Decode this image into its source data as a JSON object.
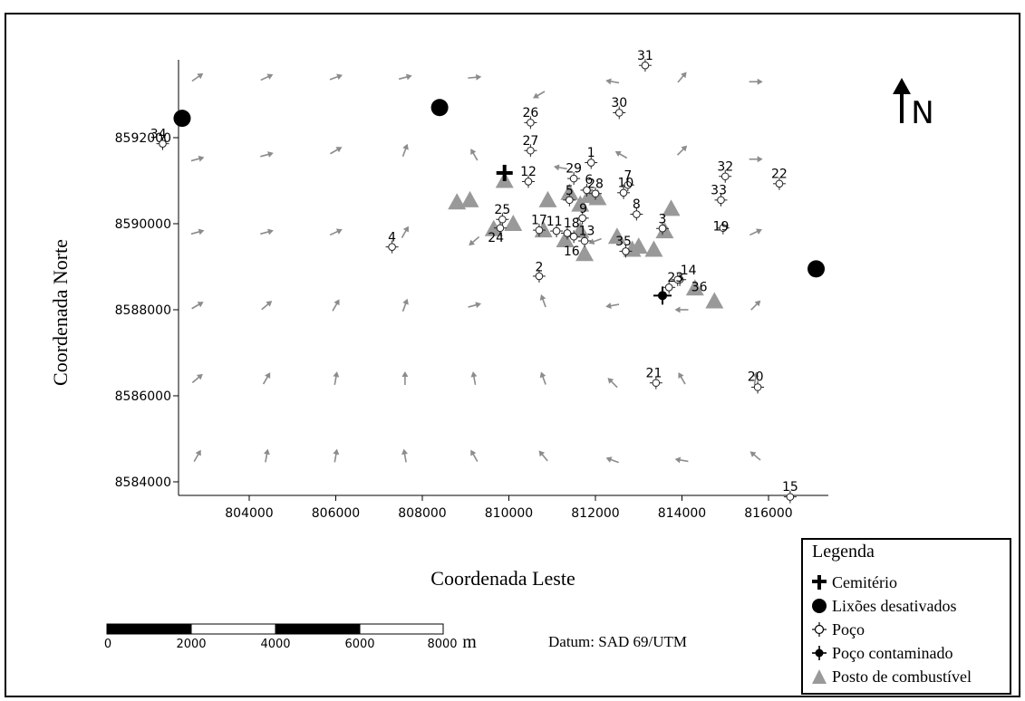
{
  "map": {
    "x_axis_label": "Coordenada Leste",
    "y_axis_label": "Coordenada Norte",
    "x_ticks": [
      "804000",
      "806000",
      "808000",
      "810000",
      "812000",
      "814000",
      "816000"
    ],
    "x_tick_values": [
      804000,
      806000,
      808000,
      810000,
      812000,
      814000,
      816000
    ],
    "y_ticks": [
      "8584000",
      "8586000",
      "8588000",
      "8590000",
      "8592000"
    ],
    "y_tick_values": [
      8584000,
      8586000,
      8588000,
      8590000,
      8592000
    ],
    "xlim": [
      802000,
      817200
    ],
    "ylim": [
      8583600,
      8593800
    ],
    "north_label": "N",
    "datum": "Datum: SAD 69/UTM",
    "scale_bar": {
      "labels": [
        "0",
        "2000",
        "4000",
        "6000",
        "8000"
      ],
      "unit": "m"
    },
    "colors": {
      "triangle": "#999999",
      "arrow": "#8c8c8c",
      "black": "#000000"
    },
    "wells": [
      {
        "id": "1",
        "x": 811900,
        "y": 8591420
      },
      {
        "id": "2",
        "x": 810700,
        "y": 8588780
      },
      {
        "id": "3",
        "x": 813550,
        "y": 8589890
      },
      {
        "id": "4",
        "x": 807300,
        "y": 8589460
      },
      {
        "id": "5",
        "x": 811400,
        "y": 8590550
      },
      {
        "id": "6",
        "x": 811800,
        "y": 8590780
      },
      {
        "id": "7",
        "x": 812750,
        "y": 8590900
      },
      {
        "id": "8",
        "x": 812950,
        "y": 8590220
      },
      {
        "id": "9",
        "x": 811700,
        "y": 8590130
      },
      {
        "id": "10",
        "x": 812650,
        "y": 8590720
      },
      {
        "id": "11",
        "x": 811100,
        "y": 8589830
      },
      {
        "id": "12",
        "x": 810450,
        "y": 8590980
      },
      {
        "id": "13",
        "x": 811750,
        "y": 8589600
      },
      {
        "id": "14",
        "x": 813950,
        "y": 8588700
      },
      {
        "id": "15",
        "x": 816500,
        "y": 8583650
      },
      {
        "id": "16",
        "x": 811500,
        "y": 8589700
      },
      {
        "id": "17",
        "x": 810700,
        "y": 8589850
      },
      {
        "id": "18",
        "x": 811350,
        "y": 8589780
      },
      {
        "id": "19",
        "x": 814950,
        "y": 8589900
      },
      {
        "id": "20",
        "x": 815750,
        "y": 8586200
      },
      {
        "id": "21",
        "x": 813400,
        "y": 8586300
      },
      {
        "id": "22",
        "x": 816250,
        "y": 8590930
      },
      {
        "id": "23",
        "x": 813700,
        "y": 8588520
      },
      {
        "id": "24",
        "x": 809800,
        "y": 8589900
      },
      {
        "id": "25",
        "x": 809850,
        "y": 8590100
      },
      {
        "id": "26",
        "x": 810500,
        "y": 8592350
      },
      {
        "id": "27",
        "x": 810500,
        "y": 8591700
      },
      {
        "id": "28",
        "x": 812000,
        "y": 8590700
      },
      {
        "id": "29",
        "x": 811500,
        "y": 8591050
      },
      {
        "id": "30",
        "x": 812550,
        "y": 8592580
      },
      {
        "id": "31",
        "x": 813150,
        "y": 8593680
      },
      {
        "id": "32",
        "x": 815000,
        "y": 8591100
      },
      {
        "id": "33",
        "x": 814900,
        "y": 8590550
      },
      {
        "id": "34",
        "x": 802000,
        "y": 8591860
      },
      {
        "id": "35",
        "x": 812700,
        "y": 8589360
      },
      {
        "id": "36",
        "x": 813900,
        "y": 8588700
      }
    ],
    "well_labels": [
      {
        "id": "1",
        "x": 811900,
        "y": 8591660
      },
      {
        "id": "2",
        "x": 810700,
        "y": 8589000
      },
      {
        "id": "3",
        "x": 813550,
        "y": 8590120
      },
      {
        "id": "4",
        "x": 807300,
        "y": 8589690
      },
      {
        "id": "5",
        "x": 811400,
        "y": 8590780
      },
      {
        "id": "6",
        "x": 811850,
        "y": 8591030
      },
      {
        "id": "7",
        "x": 812750,
        "y": 8591130
      },
      {
        "id": "8",
        "x": 812950,
        "y": 8590460
      },
      {
        "id": "9",
        "x": 811720,
        "y": 8590360
      },
      {
        "id": "10",
        "x": 812700,
        "y": 8590960
      },
      {
        "id": "11",
        "x": 811050,
        "y": 8590060
      },
      {
        "id": "12",
        "x": 810450,
        "y": 8591220
      },
      {
        "id": "13",
        "x": 811800,
        "y": 8589840
      },
      {
        "id": "14",
        "x": 814150,
        "y": 8588930
      },
      {
        "id": "15",
        "x": 816500,
        "y": 8583900
      },
      {
        "id": "16",
        "x": 811450,
        "y": 8589370
      },
      {
        "id": "17",
        "x": 810700,
        "y": 8590090
      },
      {
        "id": "18",
        "x": 811450,
        "y": 8590020
      },
      {
        "id": "19",
        "x": 814900,
        "y": 8589950
      },
      {
        "id": "20",
        "x": 815700,
        "y": 8586450
      },
      {
        "id": "21",
        "x": 813350,
        "y": 8586540
      },
      {
        "id": "22",
        "x": 816250,
        "y": 8591170
      },
      {
        "id": "23",
        "x": 813850,
        "y": 8588760
      },
      {
        "id": "24",
        "x": 809700,
        "y": 8589680
      },
      {
        "id": "25",
        "x": 809850,
        "y": 8590340
      },
      {
        "id": "26",
        "x": 810500,
        "y": 8592590
      },
      {
        "id": "27",
        "x": 810500,
        "y": 8591940
      },
      {
        "id": "28",
        "x": 812000,
        "y": 8590940
      },
      {
        "id": "29",
        "x": 811500,
        "y": 8591290
      },
      {
        "id": "30",
        "x": 812550,
        "y": 8592820
      },
      {
        "id": "31",
        "x": 813150,
        "y": 8593920
      },
      {
        "id": "32",
        "x": 815000,
        "y": 8591340
      },
      {
        "id": "33",
        "x": 814850,
        "y": 8590790
      },
      {
        "id": "34",
        "x": 801900,
        "y": 8592100
      },
      {
        "id": "35",
        "x": 812650,
        "y": 8589600
      },
      {
        "id": "36",
        "x": 814400,
        "y": 8588540
      }
    ],
    "contaminated_well": {
      "x": 813550,
      "y": 8588330
    },
    "cemetery": {
      "x": 809900,
      "y": 8591180
    },
    "dumps": [
      {
        "x": 802450,
        "y": 8592450
      },
      {
        "x": 808400,
        "y": 8592700
      },
      {
        "x": 817100,
        "y": 8588950
      }
    ],
    "stations": [
      {
        "x": 808800,
        "y": 8590500
      },
      {
        "x": 809100,
        "y": 8590550
      },
      {
        "x": 809650,
        "y": 8589880
      },
      {
        "x": 810100,
        "y": 8590000
      },
      {
        "x": 809900,
        "y": 8591000
      },
      {
        "x": 810800,
        "y": 8589850
      },
      {
        "x": 810900,
        "y": 8590550
      },
      {
        "x": 811400,
        "y": 8590720
      },
      {
        "x": 811300,
        "y": 8589620
      },
      {
        "x": 811650,
        "y": 8589840
      },
      {
        "x": 811750,
        "y": 8589300
      },
      {
        "x": 811850,
        "y": 8590650
      },
      {
        "x": 811650,
        "y": 8590450
      },
      {
        "x": 812050,
        "y": 8590600
      },
      {
        "x": 812500,
        "y": 8589700
      },
      {
        "x": 812850,
        "y": 8589400
      },
      {
        "x": 813000,
        "y": 8589470
      },
      {
        "x": 813350,
        "y": 8589400
      },
      {
        "x": 813600,
        "y": 8589830
      },
      {
        "x": 813750,
        "y": 8590350
      },
      {
        "x": 814300,
        "y": 8588500
      },
      {
        "x": 814750,
        "y": 8588200
      }
    ],
    "flow_arrows": [
      {
        "x": 802800,
        "y": 8593400,
        "a": 35
      },
      {
        "x": 804400,
        "y": 8593400,
        "a": 25
      },
      {
        "x": 806000,
        "y": 8593400,
        "a": 20
      },
      {
        "x": 807600,
        "y": 8593400,
        "a": 15
      },
      {
        "x": 809200,
        "y": 8593400,
        "a": 5
      },
      {
        "x": 810700,
        "y": 8593000,
        "a": 210
      },
      {
        "x": 812400,
        "y": 8593300,
        "a": 170
      },
      {
        "x": 814000,
        "y": 8593400,
        "a": 50
      },
      {
        "x": 815700,
        "y": 8593300,
        "a": 0
      },
      {
        "x": 802800,
        "y": 8591500,
        "a": 15
      },
      {
        "x": 804400,
        "y": 8591600,
        "a": 15
      },
      {
        "x": 806000,
        "y": 8591700,
        "a": 30
      },
      {
        "x": 807600,
        "y": 8591700,
        "a": 70
      },
      {
        "x": 809200,
        "y": 8591600,
        "a": 120
      },
      {
        "x": 811200,
        "y": 8591300,
        "a": 170
      },
      {
        "x": 812600,
        "y": 8591600,
        "a": 150
      },
      {
        "x": 814000,
        "y": 8591700,
        "a": 45
      },
      {
        "x": 815700,
        "y": 8591500,
        "a": 0
      },
      {
        "x": 802800,
        "y": 8589800,
        "a": 15
      },
      {
        "x": 804400,
        "y": 8589800,
        "a": 15
      },
      {
        "x": 806000,
        "y": 8589800,
        "a": 25
      },
      {
        "x": 807600,
        "y": 8589800,
        "a": 60
      },
      {
        "x": 809200,
        "y": 8589600,
        "a": 220
      },
      {
        "x": 812000,
        "y": 8589600,
        "a": 200
      },
      {
        "x": 815700,
        "y": 8589800,
        "a": 25
      },
      {
        "x": 802800,
        "y": 8588100,
        "a": 30
      },
      {
        "x": 804400,
        "y": 8588100,
        "a": 40
      },
      {
        "x": 806000,
        "y": 8588100,
        "a": 60
      },
      {
        "x": 807600,
        "y": 8588100,
        "a": 70
      },
      {
        "x": 809200,
        "y": 8588100,
        "a": 15
      },
      {
        "x": 810800,
        "y": 8588200,
        "a": 110
      },
      {
        "x": 812400,
        "y": 8588100,
        "a": 190
      },
      {
        "x": 814000,
        "y": 8588000,
        "a": 180
      },
      {
        "x": 815700,
        "y": 8588100,
        "a": 45
      },
      {
        "x": 802800,
        "y": 8586400,
        "a": 40
      },
      {
        "x": 804400,
        "y": 8586400,
        "a": 60
      },
      {
        "x": 806000,
        "y": 8586400,
        "a": 80
      },
      {
        "x": 807600,
        "y": 8586400,
        "a": 90
      },
      {
        "x": 809200,
        "y": 8586400,
        "a": 100
      },
      {
        "x": 810800,
        "y": 8586400,
        "a": 110
      },
      {
        "x": 812400,
        "y": 8586300,
        "a": 135
      },
      {
        "x": 814000,
        "y": 8586400,
        "a": 120
      },
      {
        "x": 815700,
        "y": 8586400,
        "a": 80
      },
      {
        "x": 802800,
        "y": 8584600,
        "a": 60
      },
      {
        "x": 804400,
        "y": 8584600,
        "a": 80
      },
      {
        "x": 806000,
        "y": 8584600,
        "a": 80
      },
      {
        "x": 807600,
        "y": 8584600,
        "a": 100
      },
      {
        "x": 809200,
        "y": 8584600,
        "a": 120
      },
      {
        "x": 810800,
        "y": 8584600,
        "a": 130
      },
      {
        "x": 812400,
        "y": 8584500,
        "a": 160
      },
      {
        "x": 814000,
        "y": 8584500,
        "a": 170
      },
      {
        "x": 815700,
        "y": 8584600,
        "a": 140
      }
    ]
  },
  "legend": {
    "title": "Legenda",
    "items": [
      {
        "label": "Cemitério",
        "icon": "cross-icon"
      },
      {
        "label": "Lixões desativados",
        "icon": "filled-circle-icon"
      },
      {
        "label": "Poço",
        "icon": "well-icon"
      },
      {
        "label": "Poço contaminado",
        "icon": "contaminated-well-icon"
      },
      {
        "label": "Posto de combustível",
        "icon": "triangle-icon"
      }
    ]
  }
}
